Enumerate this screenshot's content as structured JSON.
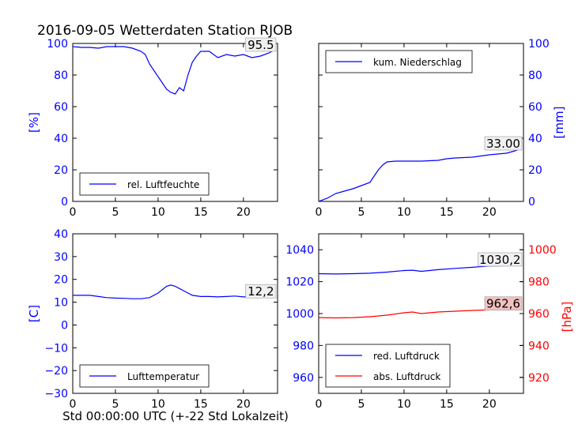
{
  "title": "2016-09-05 Wetterdaten Station RJOB",
  "xlabel": "Std 00:00:00 UTC (+-22 Std Lokalzeit)",
  "colors": {
    "blue": "#0000ff",
    "red": "#ff0000",
    "axis": "#000000"
  },
  "chart_data": [
    {
      "type": "line",
      "panel": "top-left",
      "ylabel": "[%]",
      "ylim": [
        0,
        100
      ],
      "yticks": [
        "0",
        "20",
        "40",
        "60",
        "80",
        "100"
      ],
      "xlim": [
        0,
        24
      ],
      "xticks": [
        "0",
        "5",
        "10",
        "15",
        "20"
      ],
      "legend": "bottom-left",
      "annotation": "95.5",
      "series": [
        {
          "name": "rel. Luftfeuchte",
          "color": "#0000ff",
          "x": [
            0,
            1,
            2,
            3,
            4,
            5,
            6,
            7,
            8,
            8.5,
            9,
            9.5,
            10,
            10.5,
            11,
            11.5,
            12,
            12.5,
            13,
            13.5,
            14,
            14.5,
            15,
            16,
            17,
            18,
            19,
            20,
            21,
            22,
            23,
            23.5
          ],
          "y": [
            98,
            97.5,
            97.5,
            97,
            98,
            98,
            98,
            97,
            95,
            93,
            87,
            83,
            79,
            75,
            71,
            69,
            68,
            72,
            70,
            80,
            88,
            92,
            95,
            95,
            91,
            93,
            92,
            93,
            91,
            92,
            94,
            95.5
          ]
        }
      ]
    },
    {
      "type": "line",
      "panel": "top-right",
      "ylabel": "[mm]",
      "ylim": [
        0,
        100
      ],
      "yticks": [
        "0",
        "20",
        "40",
        "60",
        "80",
        "100"
      ],
      "xlim": [
        0,
        24
      ],
      "xticks": [
        "0",
        "5",
        "10",
        "15",
        "20"
      ],
      "legend": "top-left",
      "annotation": "33.00",
      "series": [
        {
          "name": "kum. Niederschlag",
          "color": "#0000ff",
          "x": [
            0,
            1,
            2,
            3,
            4,
            5,
            6,
            6.5,
            7,
            7.5,
            8,
            9,
            10,
            12,
            14,
            15,
            16,
            18,
            20,
            22,
            23,
            23.5
          ],
          "y": [
            0,
            2,
            5,
            6.5,
            8,
            10,
            12,
            16,
            20,
            23,
            25,
            25.5,
            25.5,
            25.5,
            26,
            27,
            27.5,
            28,
            29.5,
            30.5,
            32,
            33
          ]
        }
      ]
    },
    {
      "type": "line",
      "panel": "bottom-left",
      "ylabel": "[C]",
      "ylim": [
        -30,
        40
      ],
      "yticks": [
        "−30",
        "−20",
        "−10",
        "0",
        "10",
        "20",
        "30",
        "40"
      ],
      "xlim": [
        0,
        24
      ],
      "xticks": [
        "0",
        "5",
        "10",
        "15",
        "20"
      ],
      "legend": "bottom-left",
      "annotation": "12,2",
      "series": [
        {
          "name": "Lufttemperatur",
          "color": "#0000ff",
          "x": [
            0,
            1,
            2,
            3,
            4,
            5,
            6,
            7,
            8,
            9,
            10,
            11,
            11.5,
            12,
            12.5,
            13,
            14,
            15,
            16,
            17,
            18,
            19,
            20,
            21,
            22,
            23,
            23.5
          ],
          "y": [
            13,
            13,
            13,
            12.5,
            12,
            11.8,
            11.7,
            11.5,
            11.5,
            12,
            14,
            17,
            17.5,
            17,
            16,
            15,
            13,
            12.5,
            12.5,
            12.3,
            12.5,
            12.7,
            12.3,
            12.5,
            12.3,
            12.2,
            12.2
          ]
        }
      ]
    },
    {
      "type": "line",
      "panel": "bottom-right",
      "ylabel": "[hPa]",
      "ylim": [
        950,
        1050
      ],
      "yticks": [
        "960",
        "980",
        "1000",
        "1020",
        "1040"
      ],
      "y2lim": [
        910,
        1010
      ],
      "y2ticks": [
        "920",
        "940",
        "960",
        "980",
        "1000"
      ],
      "xlim": [
        0,
        24
      ],
      "xticks": [
        "0",
        "5",
        "10",
        "15",
        "20"
      ],
      "legend": "bottom-left",
      "annotation": "1030,2",
      "annotation2": "962,6",
      "series": [
        {
          "name": "red. Luftdruck",
          "color": "#0000ff",
          "axis": "left",
          "x": [
            0,
            2,
            4,
            6,
            8,
            10,
            11,
            12,
            13,
            14,
            16,
            18,
            20,
            22,
            23.5
          ],
          "y": [
            1025,
            1024.8,
            1025,
            1025.3,
            1026,
            1027,
            1027.2,
            1026.5,
            1027,
            1027.5,
            1028.3,
            1029,
            1029.8,
            1030,
            1030.2
          ]
        },
        {
          "name": "abs. Luftdruck",
          "color": "#ff0000",
          "axis": "right",
          "x": [
            0,
            2,
            4,
            6,
            8,
            10,
            11,
            12,
            13,
            14,
            16,
            18,
            20,
            22,
            23.5
          ],
          "y": [
            957.5,
            957.3,
            957.5,
            958,
            959,
            960.5,
            961,
            960,
            960.5,
            961,
            961.5,
            962,
            962.3,
            962.5,
            962.6
          ]
        }
      ]
    }
  ]
}
